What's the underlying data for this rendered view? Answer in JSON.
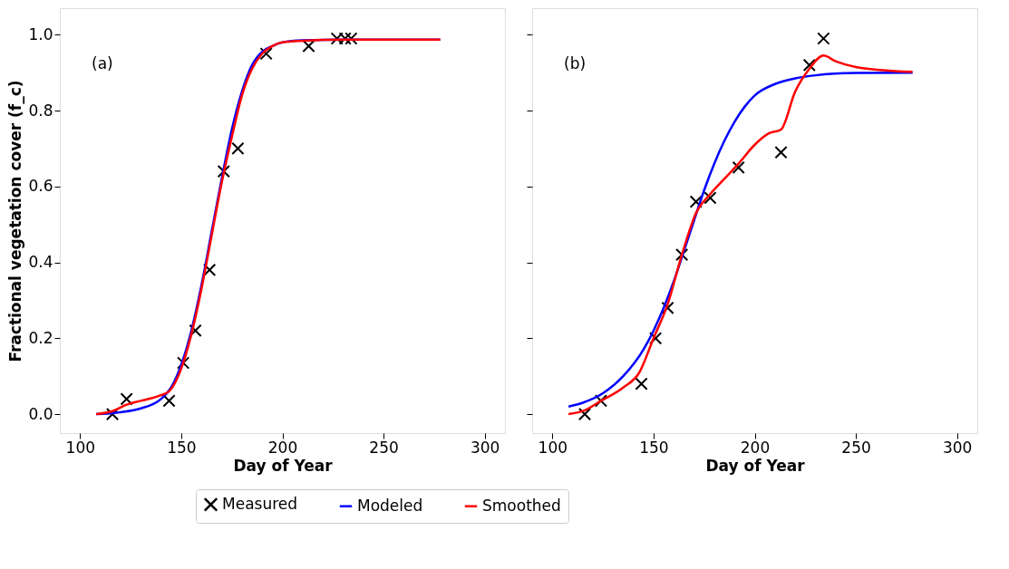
{
  "chart_data": [
    {
      "type": "line",
      "xlabel": "Day of Year",
      "ylabel": "Fractional vegetation cover (f_c)",
      "annotations": [
        "(a)"
      ],
      "xlim": [
        90,
        310
      ],
      "xticks": [
        100,
        150,
        200,
        250,
        300
      ],
      "ylim": [
        -0.05,
        1.07
      ],
      "yticks": [
        {
          "value": 0,
          "label": "0.0"
        },
        {
          "value": 0.2,
          "label": "0.2"
        },
        {
          "value": 0.4,
          "label": "0.4"
        },
        {
          "value": 0.6,
          "label": "0.6"
        },
        {
          "value": 0.8,
          "label": "0.8"
        },
        {
          "value": 1,
          "label": "1.0"
        }
      ],
      "grid": false,
      "legend": "bottom",
      "series": [
        {
          "name": "Measured",
          "type": "scatter",
          "marker": "cross",
          "color": "#000000",
          "x": [
            116,
            123,
            144,
            151,
            157,
            164,
            171,
            178,
            192,
            213,
            227,
            231,
            234
          ],
          "values": [
            0.0,
            0.04,
            0.035,
            0.135,
            0.22,
            0.38,
            0.64,
            0.7,
            0.95,
            0.97,
            0.99,
            0.99,
            0.99
          ]
        },
        {
          "name": "Modeled",
          "type": "line",
          "line_style": "solid",
          "color": "#0000ff",
          "x": [
            108,
            120,
            130,
            140,
            145,
            150,
            155,
            160,
            165,
            170,
            175,
            180,
            185,
            190,
            195,
            200,
            210,
            230,
            278
          ],
          "values": [
            0.0,
            0.005,
            0.015,
            0.04,
            0.07,
            0.13,
            0.22,
            0.34,
            0.48,
            0.62,
            0.75,
            0.85,
            0.92,
            0.955,
            0.97,
            0.98,
            0.985,
            0.987,
            0.987
          ]
        },
        {
          "name": "Smoothed",
          "type": "line",
          "line_style": "solid",
          "color": "#ff0000",
          "x": [
            108,
            116,
            123,
            130,
            140,
            144,
            150,
            155,
            160,
            165,
            170,
            175,
            180,
            185,
            190,
            195,
            200,
            210,
            230,
            278
          ],
          "values": [
            0.0,
            0.008,
            0.025,
            0.035,
            0.05,
            0.06,
            0.12,
            0.21,
            0.33,
            0.47,
            0.61,
            0.73,
            0.84,
            0.91,
            0.95,
            0.97,
            0.98,
            0.984,
            0.987,
            0.987
          ]
        }
      ]
    },
    {
      "type": "line",
      "xlabel": "Day of Year",
      "annotations": [
        "(b)"
      ],
      "xlim": [
        90,
        310
      ],
      "xticks": [
        100,
        150,
        200,
        250,
        300
      ],
      "ylim": [
        -0.05,
        1.07
      ],
      "yticks": [
        {
          "value": 0,
          "label": null
        },
        {
          "value": 0.2,
          "label": null
        },
        {
          "value": 0.4,
          "label": null
        },
        {
          "value": 0.6,
          "label": null
        },
        {
          "value": 0.8,
          "label": null
        },
        {
          "value": 1,
          "label": null
        }
      ],
      "tick_labels": "x",
      "grid": false,
      "legend": "bottom",
      "series": [
        {
          "name": "Measured",
          "type": "scatter",
          "marker": "cross",
          "color": "#000000",
          "x": [
            116,
            124,
            144,
            151,
            157,
            164,
            171,
            178,
            192,
            213,
            227,
            234
          ],
          "values": [
            0.0,
            0.035,
            0.08,
            0.2,
            0.28,
            0.42,
            0.56,
            0.57,
            0.65,
            0.69,
            0.92,
            0.99
          ]
        },
        {
          "name": "Modeled",
          "type": "line",
          "line_style": "solid",
          "color": "#0000ff",
          "x": [
            108,
            115,
            125,
            135,
            145,
            150,
            155,
            160,
            165,
            170,
            175,
            180,
            185,
            190,
            195,
            200,
            210,
            220,
            230,
            250,
            278
          ],
          "values": [
            0.02,
            0.03,
            0.055,
            0.1,
            0.17,
            0.22,
            0.28,
            0.35,
            0.43,
            0.51,
            0.59,
            0.66,
            0.72,
            0.77,
            0.81,
            0.84,
            0.87,
            0.885,
            0.893,
            0.899,
            0.9
          ]
        },
        {
          "name": "Smoothed",
          "type": "line",
          "line_style": "solid",
          "color": "#ff0000",
          "x": [
            108,
            116,
            124,
            135,
            143,
            150,
            157,
            164,
            171,
            178,
            185,
            192,
            200,
            207,
            213,
            220,
            227,
            234,
            240,
            250,
            278
          ],
          "values": [
            0.0,
            0.01,
            0.035,
            0.07,
            0.11,
            0.2,
            0.29,
            0.42,
            0.53,
            0.58,
            0.62,
            0.66,
            0.71,
            0.74,
            0.75,
            0.85,
            0.91,
            0.945,
            0.93,
            0.915,
            0.902
          ]
        }
      ]
    }
  ]
}
